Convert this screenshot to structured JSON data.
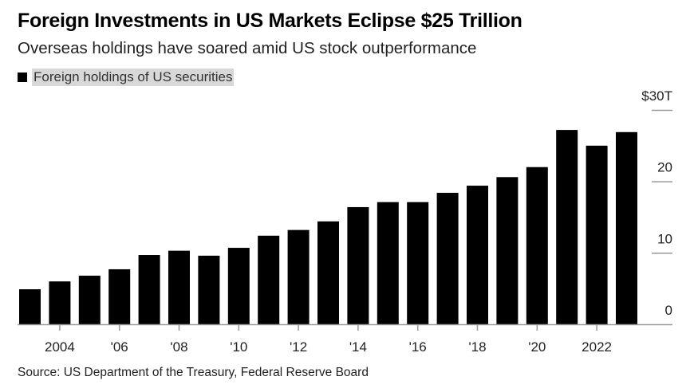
{
  "title": "Foreign Investments in US Markets Eclipse $25 Trillion",
  "subtitle": "Overseas holdings have soared amid US stock outperformance",
  "source": "Source: US Department of the Treasury, Federal Reserve Board",
  "chart_data": {
    "type": "bar",
    "title": "Foreign Investments in US Markets Eclipse $25 Trillion",
    "subtitle": "Overseas holdings have soared amid US stock outperformance",
    "legend": {
      "position": "top-left",
      "entries": [
        "Foreign holdings of US securities"
      ]
    },
    "categories": [
      2003,
      2004,
      2005,
      2006,
      2007,
      2008,
      2009,
      2010,
      2011,
      2012,
      2013,
      2014,
      2015,
      2016,
      2017,
      2018,
      2019,
      2020,
      2021,
      2022,
      2023
    ],
    "series": [
      {
        "name": "Foreign holdings of US securities",
        "color": "#000000",
        "values": [
          4.9,
          6.0,
          6.8,
          7.7,
          9.7,
          10.3,
          9.6,
          10.7,
          12.4,
          13.2,
          14.4,
          16.4,
          17.1,
          17.1,
          18.4,
          19.4,
          20.6,
          22.0,
          27.2,
          25.0,
          26.9
        ]
      }
    ],
    "x_tick_values": [
      2004,
      2006,
      2008,
      2010,
      2012,
      2014,
      2016,
      2018,
      2020,
      2022
    ],
    "x_tick_labels": [
      "2004",
      "'06",
      "'08",
      "'10",
      "'12",
      "'14",
      "'16",
      "'18",
      "'20",
      "2022"
    ],
    "y_tick_values": [
      0,
      10,
      20,
      30
    ],
    "y_tick_labels": [
      "0",
      "10",
      "20",
      "$30T"
    ],
    "ylim": [
      0,
      30
    ],
    "y_axis_side": "right",
    "unit": "trillion USD",
    "grid": false
  }
}
